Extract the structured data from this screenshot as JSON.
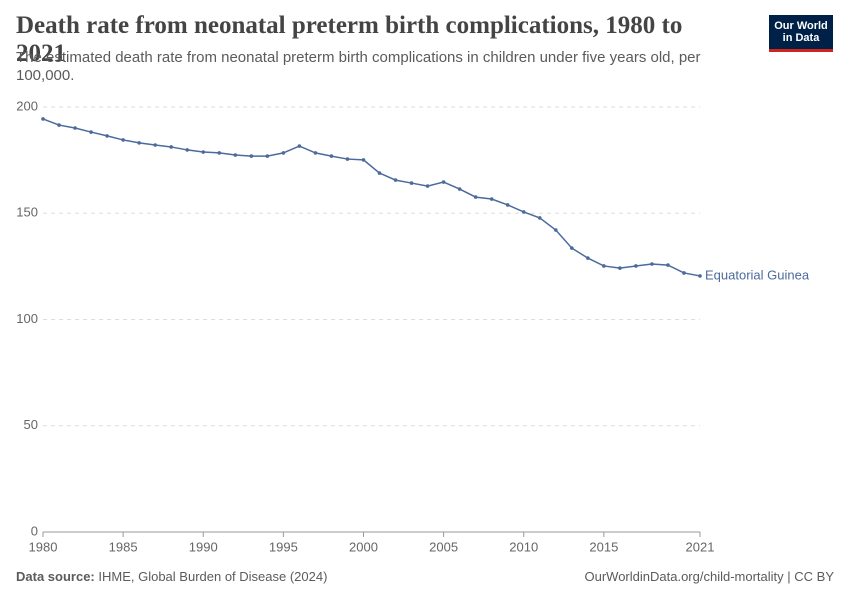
{
  "chart_data": {
    "type": "line",
    "title": "Death rate from neonatal preterm birth complications, 1980 to 2021",
    "subtitle": "The estimated death rate from neonatal preterm birth complications in children under five years old, per 100,000.",
    "source_label": "Data source:",
    "source": "IHME, Global Burden of Disease (2024)",
    "url": "OurWorldinData.org/child-mortality | CC BY",
    "logo": [
      "Our World",
      "in Data"
    ],
    "x": [
      1980,
      1981,
      1982,
      1983,
      1984,
      1985,
      1986,
      1987,
      1988,
      1989,
      1990,
      1991,
      1992,
      1993,
      1994,
      1995,
      1996,
      1997,
      1998,
      1999,
      2000,
      2001,
      2002,
      2003,
      2004,
      2005,
      2006,
      2007,
      2008,
      2009,
      2010,
      2011,
      2012,
      2013,
      2014,
      2015,
      2016,
      2017,
      2018,
      2019,
      2020,
      2021
    ],
    "series": [
      {
        "name": "Equatorial Guinea",
        "color": "#4c6a9c",
        "values": [
          194.4,
          191.5,
          190.1,
          188.2,
          186.4,
          184.5,
          183.1,
          182.1,
          181.2,
          179.8,
          178.8,
          178.4,
          177.4,
          176.9,
          176.9,
          178.4,
          181.6,
          178.4,
          176.9,
          175.5,
          175.1,
          168.9,
          165.6,
          164.2,
          162.8,
          164.7,
          161.4,
          157.6,
          156.7,
          153.9,
          150.6,
          147.8,
          142.1,
          133.6,
          128.9,
          125.2,
          124.2,
          125.2,
          126.1,
          125.6,
          121.9,
          120.5
        ]
      }
    ],
    "xlim": [
      1980,
      2021
    ],
    "xticks": [
      1980,
      1985,
      1990,
      1995,
      2000,
      2005,
      2010,
      2015,
      2021
    ],
    "ylim": [
      0,
      200
    ],
    "yticks": [
      0,
      50,
      100,
      150,
      200
    ],
    "grid": true
  }
}
